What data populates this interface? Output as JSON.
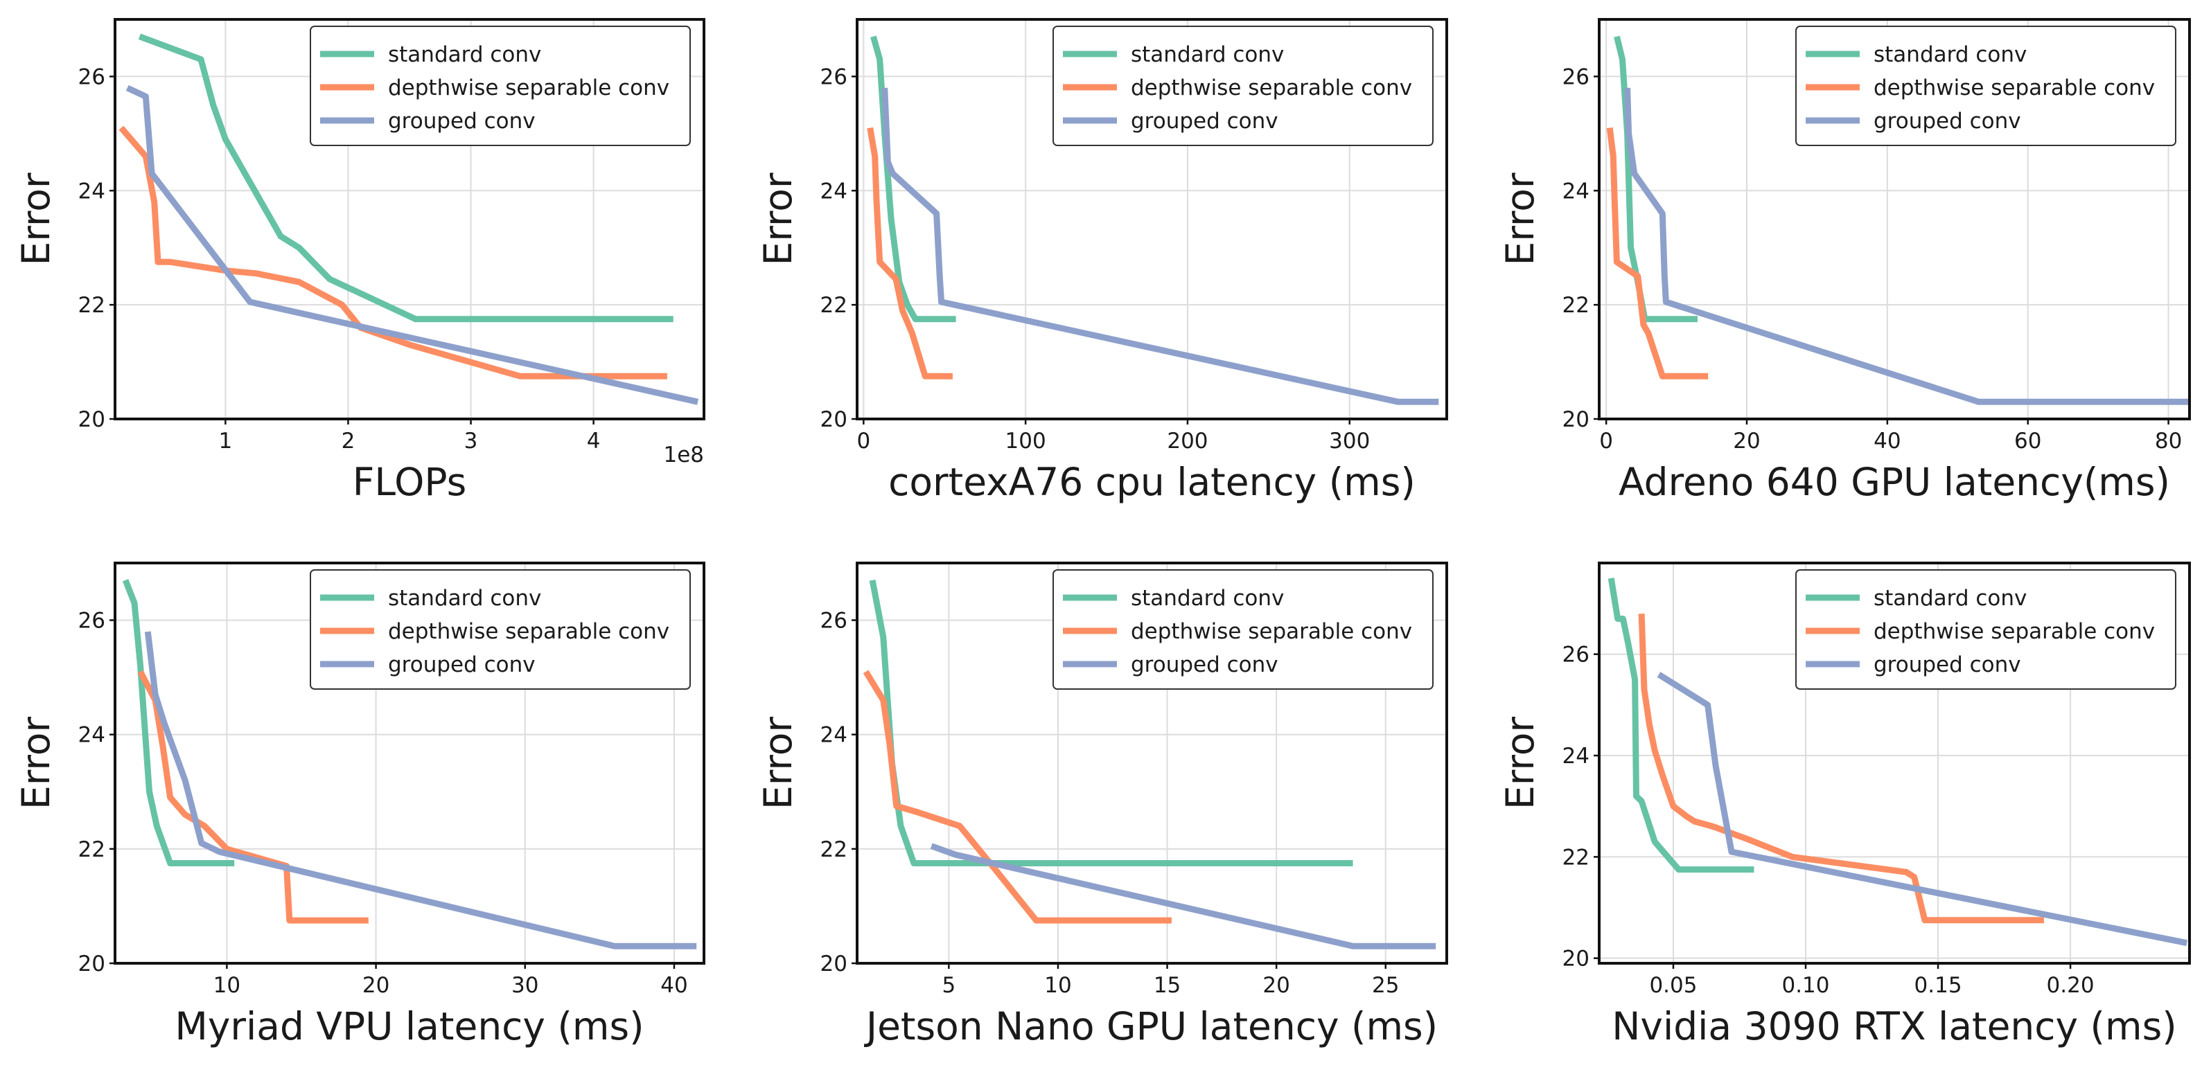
{
  "colors": {
    "standard": "#66c2a5",
    "depthwise": "#fc8d62",
    "grouped": "#8da0cb"
  },
  "chart_data": [
    {
      "type": "line",
      "title": "",
      "xlabel": "FLOPs",
      "ylabel": "Error",
      "offset_text": "1e8",
      "xlim": [
        0.1,
        4.9
      ],
      "ylim": [
        20,
        27
      ],
      "xticks": [
        1,
        2,
        3,
        4
      ],
      "xtick_labels": [
        "1",
        "2",
        "3",
        "4"
      ],
      "yticks": [
        20,
        22,
        24,
        26
      ],
      "ytick_labels": [
        "20",
        "22",
        "24",
        "26"
      ],
      "legend": "top-right",
      "series": [
        {
          "name": "standard conv",
          "color_key": "standard",
          "x": [
            0.3,
            0.8,
            0.9,
            1.0,
            1.45,
            1.6,
            1.85,
            2.0,
            2.55,
            3.0,
            4.65
          ],
          "y": [
            26.7,
            26.3,
            25.5,
            24.9,
            23.2,
            23.0,
            22.45,
            22.3,
            21.75,
            21.75,
            21.75
          ]
        },
        {
          "name": "depthwise separable conv",
          "color_key": "depthwise",
          "x": [
            0.15,
            0.35,
            0.42,
            0.45,
            0.55,
            1.0,
            1.25,
            1.6,
            1.95,
            2.1,
            2.5,
            3.4,
            3.6,
            4.6
          ],
          "y": [
            25.1,
            24.6,
            23.8,
            22.75,
            22.75,
            22.6,
            22.55,
            22.4,
            22.0,
            21.6,
            21.3,
            20.75,
            20.75,
            20.75
          ]
        },
        {
          "name": "grouped conv",
          "color_key": "grouped",
          "x": [
            0.2,
            0.35,
            0.4,
            1.2,
            4.85
          ],
          "y": [
            25.8,
            25.65,
            24.3,
            22.05,
            20.3
          ]
        }
      ]
    },
    {
      "type": "line",
      "title": "",
      "xlabel": "cortexA76 cpu latency (ms)",
      "ylabel": "Error",
      "offset_text": "",
      "xlim": [
        -4,
        360
      ],
      "ylim": [
        20,
        27
      ],
      "xticks": [
        0,
        100,
        200,
        300
      ],
      "xtick_labels": [
        "0",
        "100",
        "200",
        "300"
      ],
      "yticks": [
        20,
        22,
        24,
        26
      ],
      "ytick_labels": [
        "20",
        "22",
        "24",
        "26"
      ],
      "legend": "top-right",
      "series": [
        {
          "name": "standard conv",
          "color_key": "standard",
          "x": [
            6,
            10,
            13,
            17,
            22,
            27,
            32,
            57
          ],
          "y": [
            26.7,
            26.3,
            25.0,
            23.5,
            22.4,
            22.0,
            21.75,
            21.75
          ]
        },
        {
          "name": "depthwise separable conv",
          "color_key": "depthwise",
          "x": [
            4,
            7,
            8,
            10,
            20,
            24,
            30,
            38,
            55
          ],
          "y": [
            25.1,
            24.6,
            23.8,
            22.75,
            22.45,
            21.9,
            21.5,
            20.75,
            20.75
          ]
        },
        {
          "name": "grouped conv",
          "color_key": "grouped",
          "x": [
            13,
            15,
            18,
            45,
            47,
            48,
            330,
            355
          ],
          "y": [
            25.8,
            24.5,
            24.3,
            23.6,
            22.5,
            22.05,
            20.3,
            20.3
          ]
        }
      ]
    },
    {
      "type": "line",
      "title": "",
      "xlabel": "Adreno 640 GPU latency(ms)",
      "ylabel": "Error",
      "offset_text": "",
      "xlim": [
        -1,
        83
      ],
      "ylim": [
        20,
        27
      ],
      "xticks": [
        0,
        20,
        40,
        60,
        80
      ],
      "xtick_labels": [
        "0",
        "20",
        "40",
        "60",
        "80"
      ],
      "yticks": [
        20,
        22,
        24,
        26
      ],
      "ytick_labels": [
        "20",
        "22",
        "24",
        "26"
      ],
      "legend": "top-right",
      "series": [
        {
          "name": "standard conv",
          "color_key": "standard",
          "x": [
            1.5,
            2.3,
            3.0,
            3.5,
            4.5,
            5.5,
            13
          ],
          "y": [
            26.7,
            26.3,
            25.0,
            23.0,
            22.4,
            21.75,
            21.75
          ]
        },
        {
          "name": "depthwise separable conv",
          "color_key": "depthwise",
          "x": [
            0.5,
            1.0,
            1.2,
            1.5,
            4.5,
            5.3,
            6.0,
            8.0,
            14.5
          ],
          "y": [
            25.1,
            24.6,
            23.8,
            22.75,
            22.5,
            21.65,
            21.5,
            20.75,
            20.75
          ]
        },
        {
          "name": "grouped conv",
          "color_key": "grouped",
          "x": [
            3.0,
            3.2,
            4.0,
            8.0,
            8.3,
            8.5,
            53,
            83
          ],
          "y": [
            25.8,
            25.0,
            24.3,
            23.6,
            22.5,
            22.05,
            20.3,
            20.3
          ]
        }
      ]
    },
    {
      "type": "line",
      "title": "",
      "xlabel": "Myriad VPU latency (ms)",
      "ylabel": "Error",
      "offset_text": "",
      "xlim": [
        2.5,
        42
      ],
      "ylim": [
        20,
        27
      ],
      "xticks": [
        10,
        20,
        30,
        40
      ],
      "xtick_labels": [
        "10",
        "20",
        "30",
        "40"
      ],
      "yticks": [
        20,
        22,
        24,
        26
      ],
      "ytick_labels": [
        "20",
        "22",
        "24",
        "26"
      ],
      "legend": "top-right",
      "series": [
        {
          "name": "standard conv",
          "color_key": "standard",
          "x": [
            3.2,
            3.8,
            4.2,
            4.8,
            5.3,
            6.2,
            10.5
          ],
          "y": [
            26.7,
            26.3,
            25.2,
            23.0,
            22.4,
            21.75,
            21.75
          ]
        },
        {
          "name": "depthwise separable conv",
          "color_key": "depthwise",
          "x": [
            4.2,
            5.2,
            5.7,
            6.2,
            7.2,
            8.5,
            10.0,
            14.0,
            14.2,
            19.5
          ],
          "y": [
            25.1,
            24.6,
            23.8,
            22.9,
            22.6,
            22.4,
            22.0,
            21.7,
            20.75,
            20.75
          ]
        },
        {
          "name": "grouped conv",
          "color_key": "grouped",
          "x": [
            4.7,
            5.2,
            5.8,
            7.2,
            8.3,
            9.5,
            36,
            41.5
          ],
          "y": [
            25.8,
            24.7,
            24.2,
            23.2,
            22.1,
            21.95,
            20.3,
            20.3
          ]
        }
      ]
    },
    {
      "type": "line",
      "title": "",
      "xlabel": "Jetson Nano GPU latency (ms)",
      "ylabel": "Error",
      "offset_text": "",
      "xlim": [
        0.8,
        27.8
      ],
      "ylim": [
        20,
        27
      ],
      "xticks": [
        5,
        10,
        15,
        20,
        25
      ],
      "xtick_labels": [
        "5",
        "10",
        "15",
        "20",
        "25"
      ],
      "yticks": [
        20,
        22,
        24,
        26
      ],
      "ytick_labels": [
        "20",
        "22",
        "24",
        "26"
      ],
      "legend": "top-right",
      "series": [
        {
          "name": "standard conv",
          "color_key": "standard",
          "x": [
            1.5,
            2.0,
            2.4,
            2.8,
            3.4,
            23.5
          ],
          "y": [
            26.7,
            25.7,
            23.5,
            22.4,
            21.75,
            21.75
          ]
        },
        {
          "name": "depthwise separable conv",
          "color_key": "depthwise",
          "x": [
            1.2,
            2.0,
            2.3,
            2.6,
            3.5,
            5.5,
            7.0,
            9.0,
            15.2
          ],
          "y": [
            25.1,
            24.6,
            23.8,
            22.75,
            22.65,
            22.4,
            21.7,
            20.75,
            20.75
          ]
        },
        {
          "name": "grouped conv",
          "color_key": "grouped",
          "x": [
            4.2,
            5.3,
            23.5,
            27.3
          ],
          "y": [
            22.05,
            21.9,
            20.3,
            20.3
          ]
        }
      ]
    },
    {
      "type": "line",
      "title": "",
      "xlabel": "Nvidia 3090 RTX latency (ms)",
      "ylabel": "Error",
      "offset_text": "",
      "xlim": [
        0.022,
        0.245
      ],
      "ylim": [
        19.9,
        27.8
      ],
      "xticks": [
        0.05,
        0.1,
        0.15,
        0.2
      ],
      "xtick_labels": [
        "0.05",
        "0.10",
        "0.15",
        "0.20"
      ],
      "yticks": [
        20,
        22,
        24,
        26
      ],
      "ytick_labels": [
        "20",
        "22",
        "24",
        "26"
      ],
      "legend": "top-right",
      "series": [
        {
          "name": "standard conv",
          "color_key": "standard",
          "x": [
            0.0265,
            0.029,
            0.031,
            0.033,
            0.0355,
            0.036,
            0.038,
            0.043,
            0.052,
            0.0805
          ],
          "y": [
            27.5,
            26.7,
            26.7,
            26.2,
            25.5,
            23.2,
            23.1,
            22.3,
            21.75,
            21.75
          ]
        },
        {
          "name": "depthwise separable conv",
          "color_key": "depthwise",
          "x": [
            0.038,
            0.039,
            0.041,
            0.043,
            0.046,
            0.05,
            0.055,
            0.058,
            0.065,
            0.078,
            0.095,
            0.138,
            0.141,
            0.145,
            0.19
          ],
          "y": [
            26.8,
            25.3,
            24.6,
            24.1,
            23.6,
            23.0,
            22.8,
            22.7,
            22.6,
            22.35,
            22.0,
            21.7,
            21.6,
            20.75,
            20.75
          ]
        },
        {
          "name": "grouped conv",
          "color_key": "grouped",
          "x": [
            0.0445,
            0.063,
            0.066,
            0.072,
            0.244
          ],
          "y": [
            25.6,
            25.0,
            23.8,
            22.1,
            20.3
          ]
        }
      ]
    }
  ]
}
